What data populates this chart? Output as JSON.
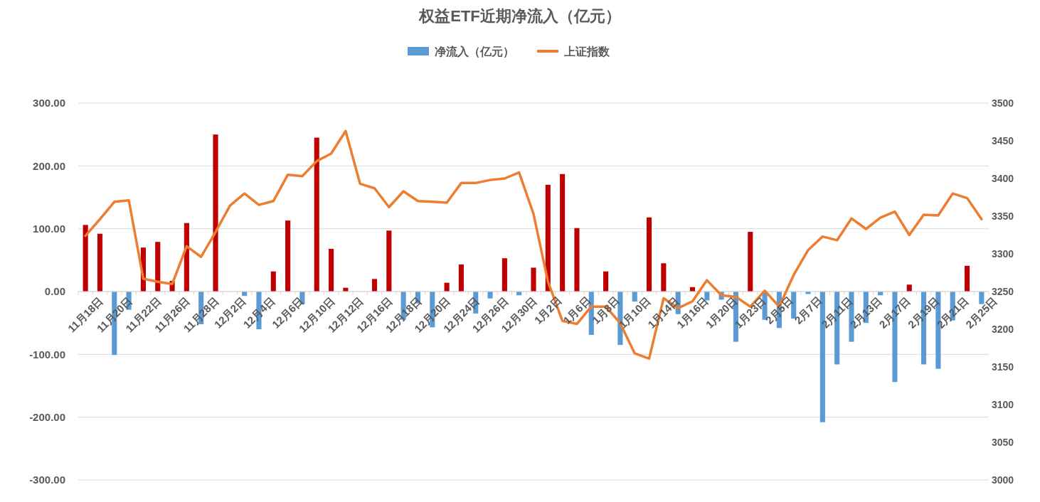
{
  "chart_data": {
    "type": "bar",
    "title": "权益ETF近期净流入（亿元）",
    "categories": [
      "11月18日",
      null,
      "11月20日",
      null,
      "11月22日",
      null,
      "11月26日",
      null,
      "11月28日",
      null,
      "12月2日",
      null,
      "12月4日",
      null,
      "12月6日",
      null,
      "12月10日",
      null,
      "12月12日",
      null,
      "12月16日",
      null,
      "12月18日",
      null,
      "12月20日",
      null,
      "12月24日",
      null,
      "12月26日",
      null,
      "12月30日",
      null,
      "1月2日",
      null,
      "1月6日",
      null,
      "1月8日",
      null,
      "1月10日",
      null,
      "1月14日",
      null,
      "1月16日",
      null,
      "1月20日",
      null,
      "1月23日",
      null,
      "2月5日",
      null,
      "2月7日",
      null,
      "2月11日",
      null,
      "2月13日",
      null,
      "2月17日",
      null,
      "2月19日",
      null,
      "2月21日",
      null,
      "2月25日"
    ],
    "series": [
      {
        "name": "净流入（亿元）",
        "color": "#5b9bd5",
        "values": [
          106,
          92,
          -101,
          -29,
          70,
          79,
          17,
          109,
          -52,
          250,
          0,
          -7,
          -60,
          32,
          113,
          -20,
          245,
          68,
          6,
          0,
          20,
          97,
          -45,
          -19,
          -57,
          14,
          43,
          -35,
          -11,
          53,
          -6,
          38,
          170,
          187,
          101,
          -69,
          32,
          -85,
          -16,
          118,
          45,
          -36,
          7,
          -14,
          -13,
          -80,
          95,
          -45,
          -58,
          -43,
          -4,
          -208,
          -116,
          -80,
          -50,
          -6,
          -144,
          11,
          -116,
          -123,
          -46,
          41,
          -20
        ],
        "colors": [
          "#c00000",
          "#c00000",
          "#5b9bd5",
          "#5b9bd5",
          "#c00000",
          "#c00000",
          "#c00000",
          "#c00000",
          "#5b9bd5",
          "#c00000",
          "#5b9bd5",
          "#5b9bd5",
          "#5b9bd5",
          "#c00000",
          "#c00000",
          "#5b9bd5",
          "#c00000",
          "#c00000",
          "#c00000",
          "#c00000",
          "#c00000",
          "#c00000",
          "#5b9bd5",
          "#5b9bd5",
          "#5b9bd5",
          "#c00000",
          "#c00000",
          "#5b9bd5",
          "#5b9bd5",
          "#c00000",
          "#5b9bd5",
          "#c00000",
          "#c00000",
          "#c00000",
          "#c00000",
          "#5b9bd5",
          "#c00000",
          "#5b9bd5",
          "#5b9bd5",
          "#c00000",
          "#c00000",
          "#5b9bd5",
          "#c00000",
          "#5b9bd5",
          "#5b9bd5",
          "#5b9bd5",
          "#c00000",
          "#5b9bd5",
          "#5b9bd5",
          "#5b9bd5",
          "#5b9bd5",
          "#5b9bd5",
          "#5b9bd5",
          "#5b9bd5",
          "#5b9bd5",
          "#5b9bd5",
          "#5b9bd5",
          "#c00000",
          "#5b9bd5",
          "#5b9bd5",
          "#5b9bd5",
          "#c00000",
          "#5b9bd5"
        ]
      },
      {
        "name": "上证指数",
        "type": "line",
        "axis": "y2",
        "color": "#ed7d31",
        "values": [
          3324,
          3346,
          3369,
          3371,
          3267,
          3263,
          3260,
          3310,
          3296,
          3329,
          3364,
          3380,
          3365,
          3370,
          3405,
          3403,
          3423,
          3433,
          3463,
          3393,
          3387,
          3362,
          3383,
          3370,
          3369,
          3368,
          3394,
          3394,
          3398,
          3400,
          3408,
          3353,
          3263,
          3211,
          3207,
          3230,
          3230,
          3208,
          3168,
          3161,
          3241,
          3228,
          3237,
          3265,
          3245,
          3243,
          3230,
          3251,
          3230,
          3272,
          3305,
          3323,
          3318,
          3347,
          3333,
          3348,
          3356,
          3325,
          3352,
          3351,
          3380,
          3374,
          3346
        ]
      }
    ],
    "ylim": [
      -300,
      300
    ],
    "yticks": [
      {
        "value": -300,
        "label": "-300.00"
      },
      {
        "value": -200,
        "label": "-200.00"
      },
      {
        "value": -100,
        "label": "-100.00"
      },
      {
        "value": 0,
        "label": "0.00"
      },
      {
        "value": 100,
        "label": "100.00"
      },
      {
        "value": 200,
        "label": "200.00"
      },
      {
        "value": 300,
        "label": "300.00"
      }
    ],
    "y2lim": [
      3000,
      3500
    ],
    "y2ticks": [
      3000,
      3050,
      3100,
      3150,
      3200,
      3250,
      3300,
      3350,
      3400,
      3450,
      3500
    ],
    "grid": "y",
    "legend": "top",
    "marker": "none",
    "line_style": "solid"
  }
}
